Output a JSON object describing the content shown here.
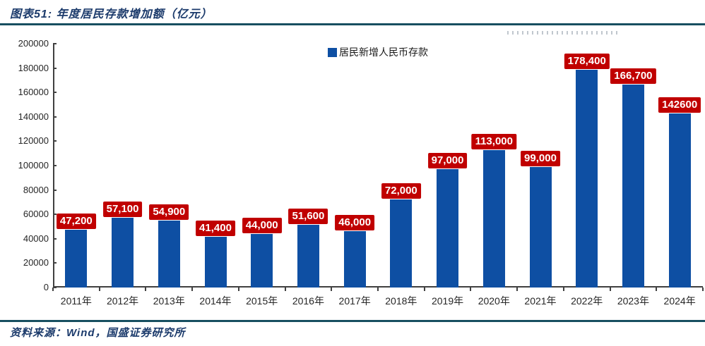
{
  "header": {
    "title": "图表51:  年度居民存款增加额（亿元）"
  },
  "footer": {
    "source": "资料来源：Wind，国盛证券研究所"
  },
  "colors": {
    "bar": "#0e4fa3",
    "data_label_bg": "#c00000",
    "data_label_text": "#ffffff",
    "rule": "#174f60",
    "title_text": "#1b3a6b",
    "axis": "#404040"
  },
  "chart_data": {
    "type": "bar",
    "title": "年度居民存款增加额（亿元）",
    "legend": [
      {
        "label": "居民新增人民币存款",
        "color": "#0e4fa3"
      }
    ],
    "legend_position": "top-center",
    "grid": false,
    "categories": [
      "2011年",
      "2012年",
      "2013年",
      "2014年",
      "2015年",
      "2016年",
      "2017年",
      "2018年",
      "2019年",
      "2020年",
      "2021年",
      "2022年",
      "2023年",
      "2024年"
    ],
    "values": [
      47200,
      57100,
      54900,
      41400,
      44000,
      51600,
      46000,
      72000,
      97000,
      113000,
      99000,
      178400,
      166700,
      142600
    ],
    "bar_labels": [
      "47,200",
      "57,100",
      "54,900",
      "41,400",
      "44,000",
      "51,600",
      "46,000",
      "72,000",
      "97,000",
      "113,000",
      "99,000",
      "178,400",
      "166,700",
      "142600"
    ],
    "xlabel": "",
    "ylabel": "",
    "ylim": [
      0,
      200000
    ],
    "ytick_step": 20000,
    "ytick_labels": [
      "0",
      "20000",
      "40000",
      "60000",
      "80000",
      "100000",
      "120000",
      "140000",
      "160000",
      "180000",
      "200000"
    ]
  }
}
